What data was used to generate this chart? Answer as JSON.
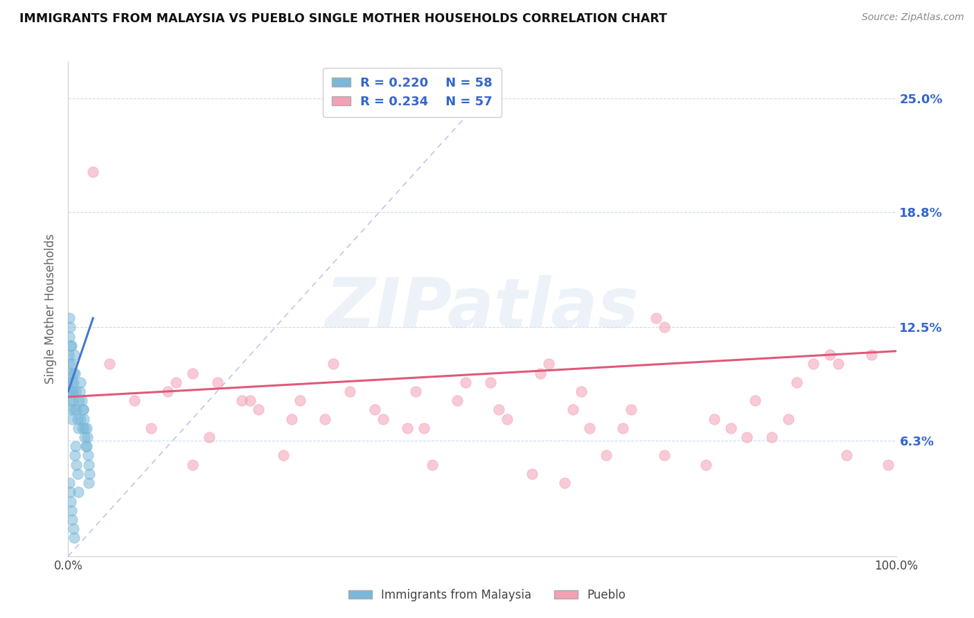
{
  "title": "IMMIGRANTS FROM MALAYSIA VS PUEBLO SINGLE MOTHER HOUSEHOLDS CORRELATION CHART",
  "source_text": "Source: ZipAtlas.com",
  "xlabel": "",
  "ylabel": "Single Mother Households",
  "legend_label_1": "Immigrants from Malaysia",
  "legend_label_2": "Pueblo",
  "R1": 0.22,
  "N1": 58,
  "R2": 0.234,
  "N2": 57,
  "xlim": [
    0.0,
    100.0
  ],
  "ylim": [
    0.0,
    27.0
  ],
  "yticks": [
    0.0,
    6.3,
    12.5,
    18.8,
    25.0
  ],
  "ytick_labels": [
    "",
    "6.3%",
    "12.5%",
    "18.8%",
    "25.0%"
  ],
  "color_blue": "#7ab8d9",
  "color_pink": "#f4a0b5",
  "color_blue_line": "#4477cc",
  "color_pink_line": "#e05878",
  "color_diag": "#aabbdd",
  "color_blue_text": "#3366cc",
  "background_color": "#ffffff",
  "watermark_text": "ZIPatlas",
  "blue_scatter_x": [
    0.05,
    0.08,
    0.12,
    0.15,
    0.18,
    0.22,
    0.28,
    0.3,
    0.35,
    0.4,
    0.45,
    0.5,
    0.55,
    0.6,
    0.65,
    0.7,
    0.8,
    0.9,
    1.0,
    1.1,
    1.2,
    1.3,
    1.4,
    1.5,
    1.6,
    1.7,
    1.8,
    1.9,
    2.0,
    2.1,
    2.2,
    2.3,
    2.4,
    2.5,
    2.6,
    0.1,
    0.2,
    0.3,
    0.4,
    0.5,
    0.6,
    0.7,
    0.8,
    0.9,
    1.0,
    1.1,
    1.2,
    1.5,
    1.8,
    2.0,
    2.2,
    2.5,
    0.15,
    0.25,
    0.35,
    0.45,
    0.55,
    0.75
  ],
  "blue_scatter_y": [
    9.5,
    11.0,
    10.5,
    12.0,
    9.0,
    8.5,
    10.0,
    11.5,
    9.5,
    8.0,
    7.5,
    9.0,
    8.5,
    10.0,
    9.5,
    11.0,
    10.0,
    9.0,
    8.0,
    7.5,
    7.0,
    8.5,
    9.0,
    9.5,
    8.5,
    7.0,
    8.0,
    7.5,
    6.5,
    6.0,
    7.0,
    6.5,
    5.5,
    5.0,
    4.5,
    4.0,
    3.5,
    3.0,
    2.5,
    2.0,
    1.5,
    1.0,
    5.5,
    6.0,
    5.0,
    4.5,
    3.5,
    7.5,
    8.0,
    7.0,
    6.0,
    4.0,
    13.0,
    12.5,
    11.5,
    10.5,
    9.0,
    8.0
  ],
  "pink_scatter_x": [
    3.0,
    8.0,
    15.0,
    12.0,
    22.0,
    18.0,
    32.0,
    42.0,
    38.0,
    28.0,
    52.0,
    48.0,
    58.0,
    63.0,
    68.0,
    72.0,
    78.0,
    83.0,
    88.0,
    93.0,
    10.0,
    17.0,
    21.0,
    27.0,
    34.0,
    37.0,
    43.0,
    47.0,
    53.0,
    57.0,
    62.0,
    67.0,
    72.0,
    77.0,
    82.0,
    87.0,
    92.0,
    97.0,
    5.0,
    13.0,
    23.0,
    31.0,
    41.0,
    51.0,
    61.0,
    71.0,
    80.0,
    90.0,
    15.0,
    26.0,
    44.0,
    56.0,
    60.0,
    65.0,
    85.0,
    94.0,
    99.0
  ],
  "pink_scatter_y": [
    21.0,
    8.5,
    10.0,
    9.0,
    8.5,
    9.5,
    10.5,
    9.0,
    7.5,
    8.5,
    8.0,
    9.5,
    10.5,
    7.0,
    8.0,
    12.5,
    7.5,
    8.5,
    9.5,
    10.5,
    7.0,
    6.5,
    8.5,
    7.5,
    9.0,
    8.0,
    7.0,
    8.5,
    7.5,
    10.0,
    9.0,
    7.0,
    5.5,
    5.0,
    6.5,
    7.5,
    11.0,
    11.0,
    10.5,
    9.5,
    8.0,
    7.5,
    7.0,
    9.5,
    8.0,
    13.0,
    7.0,
    10.5,
    5.0,
    5.5,
    5.0,
    4.5,
    4.0,
    5.5,
    6.5,
    5.5,
    5.0
  ],
  "blue_trend_x": [
    0.0,
    3.0
  ],
  "blue_trend_y": [
    9.0,
    13.0
  ],
  "pink_trend_x": [
    0.0,
    100.0
  ],
  "pink_trend_y": [
    8.7,
    11.2
  ]
}
